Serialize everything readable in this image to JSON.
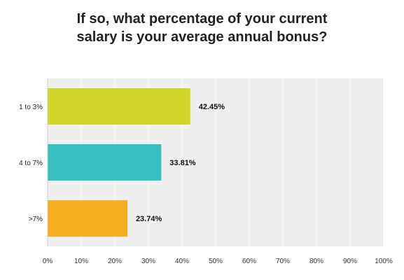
{
  "chart_data": {
    "type": "bar",
    "orientation": "horizontal",
    "title_lines": [
      "If so, what percentage of your current",
      "salary is your average annual bonus?"
    ],
    "categories": [
      "1 to 3%",
      "4 to 7%",
      ">7%"
    ],
    "values": [
      42.45,
      33.81,
      23.74
    ],
    "value_labels": [
      "42.45%",
      "33.81%",
      "23.74%"
    ],
    "colors": [
      "#d0d628",
      "#35bfc0",
      "#f6ad1f"
    ],
    "xlim": [
      0,
      100
    ],
    "x_ticks": [
      0,
      10,
      20,
      30,
      40,
      50,
      60,
      70,
      80,
      90,
      100
    ],
    "x_tick_labels": [
      "0%",
      "10%",
      "20%",
      "30%",
      "40%",
      "50%",
      "60%",
      "70%",
      "80%",
      "90%",
      "100%"
    ],
    "grid": true,
    "plot_background": "#efefef",
    "xlabel": "",
    "ylabel": ""
  }
}
